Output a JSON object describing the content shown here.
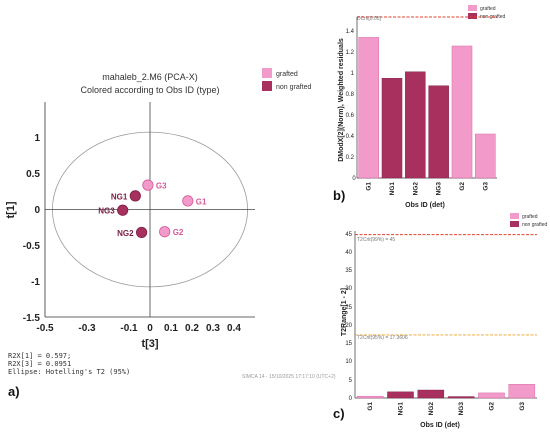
{
  "colors": {
    "grafted": "#f29ac9",
    "grafted_stroke": "#d15a9b",
    "non_grafted": "#a8305f",
    "non_grafted_stroke": "#7a1c44",
    "critical_red": "#e0402a",
    "critical_orange": "#f0a020",
    "axis": "#333333",
    "ellipse": "#9a9a9a"
  },
  "panel_a": {
    "label": "a)",
    "title_line1": "mahaleb_2.M6 (PCA-X)",
    "title_line2": "Colored according to Obs ID (type)",
    "legend": [
      "grafted",
      "non grafted"
    ],
    "r2x1": "R2X[1] = 0.597;",
    "r2x3": "R2X[3] = 0.0951",
    "ellipse_text": "Ellipse: Hotelling's T2 (95%)",
    "software": "SIMCA 14 - 15/10/2025 17:17:10 (UTC+2)"
  },
  "panel_b": {
    "label": "b)"
  },
  "panel_c": {
    "label": "c)"
  },
  "chart_data": [
    {
      "type": "scatter",
      "title": "mahaleb_2.M6 (PCA-X)",
      "subtitle": "Colored according to Obs ID (type)",
      "xlabel": "t[3]",
      "ylabel": "t[1]",
      "xlim": [
        -0.5,
        0.5
      ],
      "ylim": [
        -1.5,
        1.5
      ],
      "xticks": [
        "-0.5",
        "-0.3",
        "-0.1",
        "0",
        "0.1",
        "0.2",
        "0.3",
        "0.4"
      ],
      "yticks": [
        "1",
        "0.5",
        "0",
        "-0.5",
        "-1",
        "-1.5"
      ],
      "ellipse": {
        "rx": 0.465,
        "ry": 1.08
      },
      "series": [
        {
          "name": "grafted",
          "points": [
            {
              "label": "G3",
              "x": -0.01,
              "y": 0.34
            },
            {
              "label": "G1",
              "x": 0.18,
              "y": 0.12
            },
            {
              "label": "G2",
              "x": 0.07,
              "y": -0.31
            }
          ]
        },
        {
          "name": "non grafted",
          "points": [
            {
              "label": "NG1",
              "x": -0.07,
              "y": 0.19
            },
            {
              "label": "NG3",
              "x": -0.13,
              "y": -0.01
            },
            {
              "label": "NG2",
              "x": -0.04,
              "y": -0.32
            }
          ]
        }
      ],
      "legend_position": "top-right"
    },
    {
      "type": "bar",
      "xlabel": "Obs ID (det)",
      "ylabel": "DModX[2](Norm), Weighted residuals",
      "categories": [
        "G1",
        "NG1",
        "NG2",
        "NG3",
        "G2",
        "G3"
      ],
      "values": [
        1.31,
        0.93,
        0.99,
        0.86,
        1.23,
        0.41
      ],
      "groups": [
        "grafted",
        "non grafted",
        "non grafted",
        "non grafted",
        "grafted",
        "grafted"
      ],
      "ylim": [
        0,
        1.5
      ],
      "yticks": [
        "0",
        "0.2",
        "0.4",
        "0.6",
        "0.8",
        "1",
        "1.2",
        "1.4"
      ],
      "critical_line": {
        "label": "DCrit[0.05]",
        "value": 1.5
      },
      "legend": [
        "grafted",
        "non grafted"
      ],
      "legend_position": "top-right"
    },
    {
      "type": "bar",
      "xlabel": "Obs ID (det)",
      "ylabel": "T2Range[1 - 2]",
      "categories": [
        "G1",
        "NG1",
        "NG2",
        "NG3",
        "G2",
        "G3"
      ],
      "values": [
        0.5,
        1.7,
        2.2,
        0.4,
        1.4,
        3.8
      ],
      "groups": [
        "grafted",
        "non grafted",
        "non grafted",
        "non grafted",
        "grafted",
        "grafted"
      ],
      "ylim": [
        0,
        46
      ],
      "yticks": [
        "0",
        "5",
        "10",
        "15",
        "20",
        "25",
        "30",
        "35",
        "40",
        "45"
      ],
      "critical_lines": [
        {
          "label": "T2Crit(99%) = 45",
          "value": 45
        },
        {
          "label": "T2Crit(95%) = 17.3606",
          "value": 17.3606
        }
      ],
      "legend": [
        "grafted",
        "non grafted"
      ],
      "legend_position": "top-right"
    }
  ]
}
